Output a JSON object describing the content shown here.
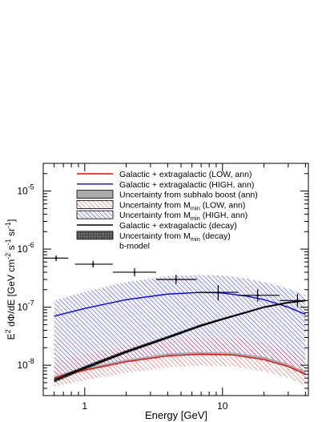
{
  "chart_data": {
    "type": "line",
    "xlabel": "Energy [GeV]",
    "ylabel_parts": [
      "E",
      "2",
      " dΦ/dE [GeV cm",
      "-2",
      " s",
      "-1",
      " sr",
      "-1",
      "]"
    ],
    "x_scale": "log",
    "y_scale": "log",
    "xlim": [
      0.5,
      42
    ],
    "ylim": [
      3e-09,
      3e-05
    ],
    "x_ticks": [
      {
        "value": 1,
        "label": "1"
      },
      {
        "value": 10,
        "label": "10"
      }
    ],
    "y_ticks": [
      {
        "value": 1e-08,
        "base": "10",
        "exp": "-8"
      },
      {
        "value": 1e-07,
        "base": "10",
        "exp": "-7"
      },
      {
        "value": 1e-06,
        "base": "10",
        "exp": "-6"
      },
      {
        "value": 1e-05,
        "base": "10",
        "exp": "-5"
      }
    ],
    "legend_position": "top-right",
    "series": [
      {
        "name": "Galactic + extragalactic (LOW, ann)",
        "kind": "line",
        "color": "#ff0000",
        "x": [
          0.6,
          1,
          2,
          4,
          7,
          12,
          20,
          30,
          40
        ],
        "y": [
          6e-09,
          8.2e-09,
          1.15e-08,
          1.45e-08,
          1.55e-08,
          1.5e-08,
          1.25e-08,
          9.5e-09,
          7e-09
        ]
      },
      {
        "name": "Galactic + extragalactic (HIGH, ann)",
        "kind": "line",
        "color": "#0000ff",
        "x": [
          0.6,
          1,
          2,
          4,
          7,
          10,
          15,
          20,
          30,
          40
        ],
        "y": [
          7e-08,
          9.5e-08,
          1.35e-07,
          1.68e-07,
          1.8e-07,
          1.75e-07,
          1.55e-07,
          1.35e-07,
          1e-07,
          7.5e-08
        ]
      },
      {
        "name": "Uncertainty from subhalo boost (ann)",
        "kind": "band",
        "color": "#aaaaaa",
        "x": [
          0.6,
          1,
          2,
          4,
          7,
          12,
          20,
          30,
          40
        ],
        "y_low": [
          6e-09,
          8.2e-09,
          1.15e-08,
          1.45e-08,
          1.55e-08,
          1.5e-08,
          1.25e-08,
          9.5e-09,
          7e-09
        ],
        "y_high": [
          6.5e-09,
          9e-09,
          1.25e-08,
          1.6e-08,
          1.7e-08,
          1.65e-08,
          1.4e-08,
          1.05e-08,
          7.8e-09
        ]
      },
      {
        "name": "Uncertainty from M_min (LOW, ann)",
        "name_parts": [
          "Uncertainty from M",
          "min",
          " (LOW, ann)"
        ],
        "kind": "band",
        "color": "#ff0000",
        "x": [
          0.6,
          1,
          2,
          4,
          7,
          12,
          20,
          30,
          40
        ],
        "y_low": [
          4.2e-09,
          5.5e-09,
          7.4e-09,
          9.2e-09,
          9.8e-09,
          9.5e-09,
          7.9e-09,
          6e-09,
          4.5e-09
        ],
        "y_high": [
          1.15e-08,
          1.55e-08,
          2.2e-08,
          2.8e-08,
          3e-08,
          2.9e-08,
          2.4e-08,
          1.8e-08,
          1.35e-08
        ]
      },
      {
        "name": "Uncertainty from M_min (HIGH, ann)",
        "name_parts": [
          "Uncertainty from M",
          "min",
          " (HIGH, ann)"
        ],
        "kind": "band",
        "color": "#0000aa",
        "x": [
          0.6,
          1,
          2,
          4,
          7,
          10,
          15,
          20,
          30,
          40
        ],
        "y_low": [
          6.5e-09,
          9e-09,
          1.25e-08,
          1.6e-08,
          1.7e-08,
          1.65e-08,
          1.5e-08,
          1.4e-08,
          1.05e-08,
          7.8e-09
        ],
        "y_high": [
          1.3e-07,
          1.85e-07,
          2.7e-07,
          3.4e-07,
          3.6e-07,
          3.5e-07,
          3.1e-07,
          2.7e-07,
          2.1e-07,
          1.6e-07
        ]
      },
      {
        "name": "Galactic + extragalactic (decay)",
        "kind": "line",
        "color": "#000000",
        "x": [
          0.6,
          1,
          2,
          4,
          7,
          10,
          15,
          20,
          30,
          40
        ],
        "y": [
          5.5e-09,
          9e-09,
          1.7e-08,
          3e-08,
          4.8e-08,
          6.2e-08,
          8.2e-08,
          1e-07,
          1.2e-07,
          1.3e-07
        ]
      },
      {
        "name": "Uncertainty from M_min (decay)",
        "name_parts": [
          "Uncertainty from M",
          "min",
          " (decay)"
        ],
        "kind": "band",
        "color": "#000000",
        "x": [
          0.6,
          1,
          2,
          4,
          7,
          10,
          15,
          20,
          30,
          40
        ],
        "y_low": [
          5e-09,
          8.4e-09,
          1.6e-08,
          2.85e-08,
          4.6e-08,
          6e-08,
          7.9e-08,
          9.7e-08,
          1.17e-07,
          1.27e-07
        ],
        "y_high": [
          6e-09,
          9.7e-09,
          1.82e-08,
          3.2e-08,
          5.1e-08,
          6.5e-08,
          8.5e-08,
          1.03e-07,
          1.23e-07,
          1.33e-07
        ]
      },
      {
        "name": "b-model",
        "kind": "errorbar",
        "color": "#000000",
        "points": [
          {
            "x": 0.62,
            "y": 7e-07,
            "xlo": 0.5,
            "xhi": 0.76,
            "ylo": 6.2e-07,
            "yhi": 7.8e-07
          },
          {
            "x": 1.15,
            "y": 5.5e-07,
            "xlo": 0.85,
            "xhi": 1.6,
            "ylo": 4.8e-07,
            "yhi": 6.3e-07
          },
          {
            "x": 2.3,
            "y": 4e-07,
            "xlo": 1.6,
            "xhi": 3.3,
            "ylo": 3.4e-07,
            "yhi": 4.7e-07
          },
          {
            "x": 4.6,
            "y": 3e-07,
            "xlo": 3.3,
            "xhi": 6.5,
            "ylo": 2.5e-07,
            "yhi": 3.6e-07
          },
          {
            "x": 9.3,
            "y": 1.8e-07,
            "xlo": 6.5,
            "xhi": 13.0,
            "ylo": 1.3e-07,
            "yhi": 2.4e-07
          },
          {
            "x": 18.0,
            "y": 1.6e-07,
            "xlo": 13.0,
            "xhi": 26.0,
            "ylo": 1.25e-07,
            "yhi": 2.05e-07
          },
          {
            "x": 35.0,
            "y": 1.3e-07,
            "xlo": 26.0,
            "xhi": 42.0,
            "ylo": 1e-07,
            "yhi": 1.7e-07
          }
        ]
      }
    ]
  }
}
